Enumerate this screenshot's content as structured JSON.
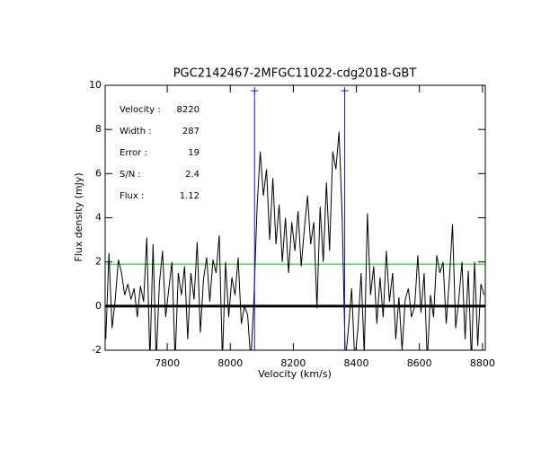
{
  "chart_data": {
    "type": "line",
    "title": "PGC2142467-2MFGC11022-cdg2018-GBT",
    "xlabel": "Velocity (km/s)",
    "ylabel": "Flux density (mJy)",
    "xlim": [
      7603,
      8809
    ],
    "ylim": [
      -2,
      10
    ],
    "xticks": [
      7800,
      8000,
      8200,
      8400,
      8600,
      8800
    ],
    "yticks": [
      -2,
      0,
      2,
      4,
      6,
      8,
      10
    ],
    "x": [
      7605,
      7615,
      7625,
      7635,
      7645,
      7655,
      7665,
      7675,
      7685,
      7695,
      7705,
      7715,
      7725,
      7735,
      7745,
      7755,
      7765,
      7775,
      7785,
      7795,
      7805,
      7815,
      7825,
      7835,
      7845,
      7855,
      7865,
      7875,
      7885,
      7895,
      7905,
      7915,
      7925,
      7935,
      7945,
      7955,
      7965,
      7975,
      7985,
      7995,
      8005,
      8015,
      8025,
      8035,
      8045,
      8055,
      8065,
      8075,
      8085,
      8095,
      8105,
      8115,
      8125,
      8135,
      8145,
      8155,
      8165,
      8175,
      8185,
      8195,
      8205,
      8215,
      8225,
      8235,
      8245,
      8255,
      8265,
      8275,
      8285,
      8295,
      8305,
      8315,
      8325,
      8335,
      8345,
      8355,
      8365,
      8375,
      8385,
      8395,
      8405,
      8415,
      8425,
      8435,
      8445,
      8455,
      8465,
      8475,
      8485,
      8495,
      8505,
      8515,
      8525,
      8535,
      8545,
      8555,
      8565,
      8575,
      8585,
      8595,
      8605,
      8615,
      8625,
      8635,
      8645,
      8655,
      8665,
      8675,
      8685,
      8695,
      8705,
      8715,
      8725,
      8735,
      8745,
      8755,
      8765,
      8775,
      8785,
      8795,
      8805
    ],
    "series": [
      {
        "color": "#000000",
        "values": [
          -1.5,
          2.4,
          -1,
          0.3,
          2.1,
          1.5,
          0.5,
          1.0,
          0.3,
          0.8,
          -0.5,
          0.9,
          0.2,
          3.1,
          -2.5,
          2.8,
          -2.5,
          1.0,
          2.5,
          -0.5,
          0.8,
          2.0,
          -2.5,
          1.5,
          0.5,
          1.8,
          -1.5,
          1.5,
          0.3,
          2.9,
          -1.2,
          1.2,
          2.2,
          0.2,
          2.1,
          1.5,
          3.2,
          -2.5,
          2.0,
          -0.5,
          1.3,
          0.5,
          2.2,
          -0.8,
          0.0,
          -0.4,
          -2.5,
          0.3,
          4.5,
          7.0,
          5.0,
          6.2,
          3.0,
          5.8,
          2.8,
          4.6,
          2.0,
          4.0,
          1.5,
          3.8,
          2.5,
          4.3,
          1.8,
          3.5,
          5.0,
          2.8,
          3.8,
          -0.1,
          4.5,
          2.0,
          5.6,
          2.5,
          7.0,
          6.2,
          7.9,
          4.0,
          -2.5,
          -1.0,
          0.8,
          -2.5,
          -1.0,
          1.5,
          -2.2,
          4.2,
          0.5,
          1.8,
          -0.8,
          1.3,
          -0.5,
          2.5,
          0.2,
          1.5,
          -1.5,
          0.4,
          -2.0,
          0.3,
          0.8,
          -0.5,
          0.0,
          2.3,
          -0.3,
          1.5,
          -2.5,
          0.5,
          -0.5,
          2.3,
          1.5,
          2.0,
          -0.8,
          1.2,
          3.7,
          -1.0,
          0.3,
          2.0,
          -1.5,
          1.6,
          -2.5,
          2.0,
          -1.8,
          1.0,
          0.5
        ]
      }
    ],
    "hlines": [
      {
        "value": 1.9,
        "color": "#00cc00"
      },
      {
        "value": 0,
        "color": "#000000"
      }
    ],
    "vlines": {
      "color": "#1a1aaa",
      "values": [
        8077,
        8363
      ]
    },
    "annotations": [
      {
        "label": "Velocity :",
        "value": "8220"
      },
      {
        "label": "Width :",
        "value": "287"
      },
      {
        "label": "Error :",
        "value": "19"
      },
      {
        "label": "S/N :",
        "value": "2.4"
      },
      {
        "label": "Flux :",
        "value": "1.12"
      }
    ],
    "annotation_color": "#2a1ab0"
  }
}
